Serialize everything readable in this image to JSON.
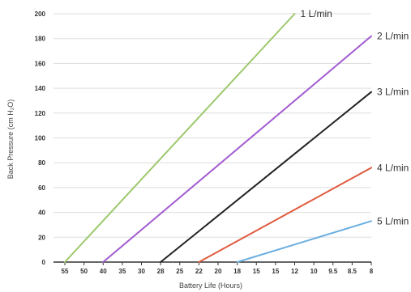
{
  "chart_data": {
    "type": "line",
    "title": "",
    "xlabel": "Battery Life (Hours)",
    "ylabel": "Back Pressure (cm H₂O)",
    "ylim": [
      0,
      200
    ],
    "y_ticks": [
      "0",
      "20",
      "40",
      "60",
      "80",
      "100",
      "120",
      "140",
      "160",
      "180",
      "200"
    ],
    "x_ticks": [
      "55",
      "50",
      "40",
      "35",
      "30",
      "28",
      "25",
      "22",
      "20",
      "18",
      "15",
      "15",
      "12",
      "10",
      "9.5",
      "8.5",
      "8"
    ],
    "grid": true,
    "legend": "labels at line ends",
    "series": [
      {
        "name": "1 L/min",
        "color": "#9dc86d",
        "points": [
          [
            0,
            0
          ],
          [
            12,
            200
          ]
        ]
      },
      {
        "name": "2 L/min",
        "color": "#a25bd0",
        "points": [
          [
            2,
            0
          ],
          [
            16,
            182
          ]
        ]
      },
      {
        "name": "3 L/min",
        "color": "#222222",
        "points": [
          [
            5,
            0
          ],
          [
            16,
            137
          ]
        ]
      },
      {
        "name": "4 L/min",
        "color": "#e05a3e",
        "points": [
          [
            7,
            0
          ],
          [
            16,
            76
          ]
        ]
      },
      {
        "name": "5 L/min",
        "color": "#6aaee0",
        "points": [
          [
            9,
            0
          ],
          [
            16,
            33
          ]
        ]
      }
    ]
  }
}
